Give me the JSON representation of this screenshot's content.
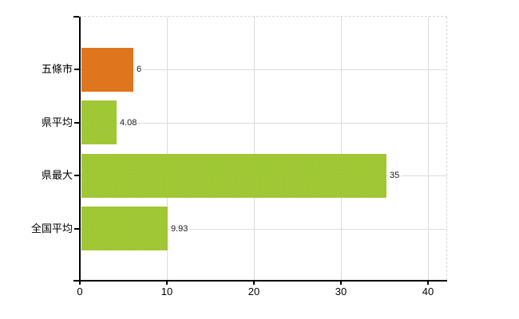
{
  "chart_data": {
    "type": "bar",
    "orientation": "horizontal",
    "title": "",
    "xlabel": "",
    "ylabel": "",
    "categories": [
      "五條市",
      "県平均",
      "県最大",
      "全国平均"
    ],
    "values": [
      6,
      4.08,
      35,
      9.93
    ],
    "value_labels": [
      "6",
      "4.08",
      "35",
      "9.93"
    ],
    "series_colors": [
      "#e0761d",
      "#a0c936",
      "#a0c936",
      "#a0c936"
    ],
    "xlim": [
      0,
      40
    ],
    "x_ticks": [
      0,
      10,
      20,
      30,
      40
    ],
    "x_tick_labels": [
      "0",
      "10",
      "20",
      "30",
      "40"
    ],
    "grid": true,
    "legend": "none",
    "background": "#ffffff"
  },
  "colors": {
    "bar_highlight_orange": "#e0761d",
    "bar_green": "#a0c936",
    "axis": "#000000",
    "gridline": "#dcdcdc",
    "plot_border_dashed": "#d6d6d6",
    "label_text": "#000000",
    "value_text": "#1a1a1a"
  }
}
